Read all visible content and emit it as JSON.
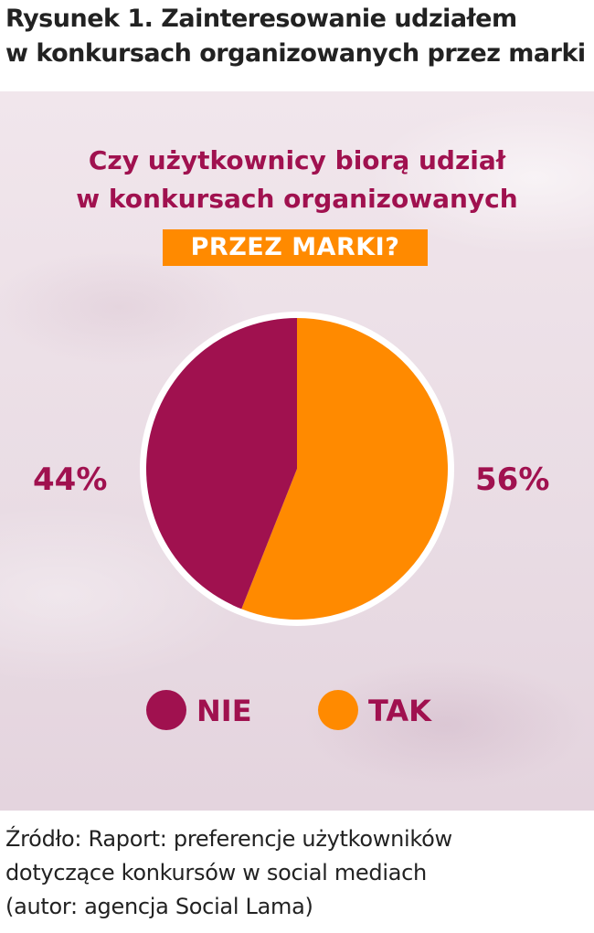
{
  "caption": {
    "line1": "Rysunek 1. Zainteresowanie udziałem",
    "line2": "w konkursach organizowanych przez marki"
  },
  "colors": {
    "magenta": "#a0114f",
    "orange": "#ff8a00",
    "pie_border": "#ffffff"
  },
  "chart_data": {
    "type": "pie",
    "title": {
      "line1": "Czy użytkownicy biorą udział",
      "line2": "w konkursach organizowanych",
      "highlight": "PRZEZ MARKI?"
    },
    "categories": [
      "NIE",
      "TAK"
    ],
    "values": [
      44,
      56
    ],
    "labels": [
      "44%",
      "56%"
    ],
    "colors": [
      "#a0114f",
      "#ff8a00"
    ],
    "legend": {
      "position": "bottom",
      "items": [
        "NIE",
        "TAK"
      ]
    }
  },
  "source": {
    "line1": "Źródło: Raport: preferencje użytkowników",
    "line2": "dotyczące konkursów w social mediach",
    "line3": "(autor: agencja Social Lama)"
  }
}
